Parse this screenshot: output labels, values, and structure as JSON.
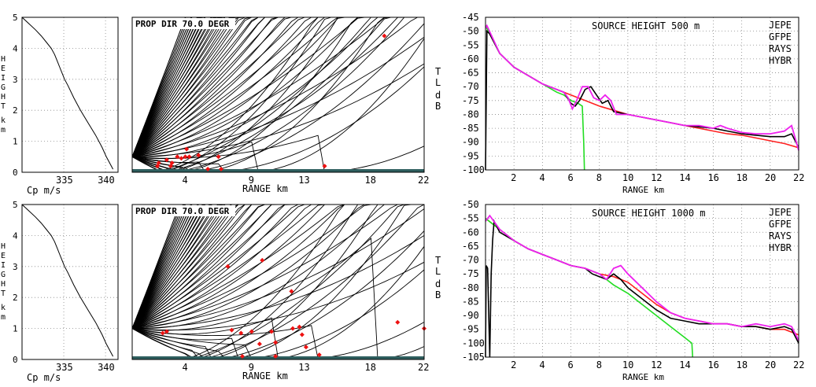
{
  "colors": {
    "jepe": "#000000",
    "gfpe": "#ff2020",
    "rays": "#22dd22",
    "hybr": "#ee22ee",
    "ray": "#000000",
    "ground": "#2f5f5f",
    "marker": "#ee1111",
    "grid": "#888888"
  },
  "tl_side_labels": [
    "T",
    "L",
    "d",
    "B"
  ],
  "chart_data": [
    {
      "type": "line",
      "panel": "profile-top",
      "xlabel": "Cp m/s",
      "ylabel": "HEIGHT km",
      "xlim": [
        330,
        341.5
      ],
      "ylim": [
        0,
        5
      ],
      "xticks": [
        335,
        340
      ],
      "yticks": [
        0,
        1,
        2,
        3,
        4,
        5
      ],
      "grid": true,
      "x": [
        330,
        330.8,
        331.6,
        332.3,
        332.9,
        333.5,
        333.9,
        334.2,
        334.5,
        334.8,
        335.1,
        335.5,
        336.2,
        337.0,
        337.9,
        338.8,
        339.6,
        340.1,
        340.5,
        340.9
      ],
      "y": [
        5.0,
        4.8,
        4.6,
        4.4,
        4.2,
        4.0,
        3.8,
        3.6,
        3.4,
        3.2,
        3.0,
        2.8,
        2.4,
        2.0,
        1.6,
        1.2,
        0.8,
        0.5,
        0.3,
        0.1
      ]
    },
    {
      "type": "ray",
      "panel": "rays-top",
      "title": "PROP DIR 70.0 DEGR",
      "xlabel": "RANGE km",
      "xlim": [
        0,
        22
      ],
      "ylim": [
        0,
        5
      ],
      "xticks": [
        4,
        9,
        13,
        18,
        22
      ],
      "source_height_km": 0.5,
      "markers": [
        {
          "x": 1.9,
          "y": 0.2
        },
        {
          "x": 2.0,
          "y": 0.3
        },
        {
          "x": 2.6,
          "y": 0.4
        },
        {
          "x": 2.9,
          "y": 0.2
        },
        {
          "x": 3.0,
          "y": 0.3
        },
        {
          "x": 3.4,
          "y": 0.5
        },
        {
          "x": 3.7,
          "y": 0.45
        },
        {
          "x": 4.0,
          "y": 0.5
        },
        {
          "x": 4.1,
          "y": 0.75
        },
        {
          "x": 4.3,
          "y": 0.5
        },
        {
          "x": 5.0,
          "y": 0.55
        },
        {
          "x": 5.7,
          "y": 0.1
        },
        {
          "x": 6.5,
          "y": 0.5
        },
        {
          "x": 6.7,
          "y": 0.1
        },
        {
          "x": 14.5,
          "y": 0.2
        },
        {
          "x": 19.0,
          "y": 4.4
        }
      ]
    },
    {
      "type": "line",
      "panel": "tl-top",
      "title": "SOURCE HEIGHT 500 m",
      "xlabel": "RANGE km",
      "ylabel": "TL dB",
      "xlim": [
        0,
        22
      ],
      "ylim": [
        -100,
        -45
      ],
      "xticks": [
        2,
        4,
        6,
        8,
        10,
        12,
        14,
        16,
        18,
        20,
        22
      ],
      "yticks": [
        -45,
        -50,
        -55,
        -60,
        -65,
        -70,
        -75,
        -80,
        -85,
        -90,
        -95,
        -100
      ],
      "grid": true,
      "legend": [
        "JEPE",
        "GFPE",
        "RAYS",
        "HYBR"
      ],
      "series": [
        {
          "name": "JEPE",
          "x": [
            0,
            0.1,
            0.3,
            1,
            2,
            3,
            4,
            5,
            5.5,
            6,
            6.3,
            6.6,
            7,
            7.4,
            7.8,
            8.2,
            8.6,
            9,
            10,
            11,
            12,
            13,
            14,
            15,
            16,
            17,
            18,
            19,
            20,
            21,
            21.5,
            22
          ],
          "y": [
            -100,
            -50,
            -51,
            -58,
            -63,
            -66,
            -69,
            -71,
            -72,
            -76,
            -77,
            -75,
            -71,
            -70,
            -73,
            -76,
            -75,
            -79,
            -80,
            -81,
            -82,
            -83,
            -84,
            -84.5,
            -85,
            -86,
            -87,
            -87.5,
            -88,
            -88,
            -87,
            -92
          ]
        },
        {
          "name": "GFPE",
          "x": [
            0,
            1,
            2,
            3,
            4,
            5,
            6,
            7,
            8,
            9,
            10,
            11,
            12,
            13,
            14,
            15,
            16,
            17,
            18,
            19,
            20,
            21,
            22
          ],
          "y": [
            -48,
            -58,
            -63,
            -66,
            -69,
            -71,
            -73,
            -75,
            -77,
            -78.5,
            -80,
            -81,
            -82,
            -83,
            -84,
            -85,
            -86,
            -87,
            -87.5,
            -88.5,
            -89.5,
            -90.5,
            -92
          ]
        },
        {
          "name": "RAYS",
          "x": [
            0,
            1,
            2,
            3,
            4,
            5,
            5.5,
            6,
            6.5,
            6.8,
            6.9,
            6.95
          ],
          "y": [
            -48,
            -58,
            -63,
            -66,
            -69,
            -72,
            -73,
            -75,
            -76,
            -77,
            -90,
            -100
          ]
        },
        {
          "name": "HYBR",
          "x": [
            0,
            0.1,
            1,
            2,
            3,
            4,
            5,
            5.5,
            5.8,
            6.1,
            6.4,
            6.8,
            7.2,
            7.6,
            8,
            8.4,
            8.8,
            9.2,
            10,
            11,
            12,
            13,
            14,
            15,
            16,
            16.5,
            17,
            18,
            19,
            20,
            21,
            21.5,
            22
          ],
          "y": [
            -49,
            -48,
            -58,
            -63,
            -66,
            -69,
            -71,
            -72,
            -74,
            -78,
            -75,
            -70,
            -70,
            -74,
            -75,
            -73,
            -75,
            -80,
            -80,
            -81,
            -82,
            -83,
            -84,
            -84,
            -85,
            -84,
            -85,
            -86.5,
            -87,
            -87,
            -86,
            -84,
            -93
          ]
        }
      ]
    },
    {
      "type": "line",
      "panel": "profile-bottom",
      "xlabel": "Cp m/s",
      "ylabel": "HEIGHT km",
      "xlim": [
        330,
        341.5
      ],
      "ylim": [
        0,
        5
      ],
      "xticks": [
        335,
        340
      ],
      "yticks": [
        0,
        1,
        2,
        3,
        4,
        5
      ],
      "grid": true,
      "x": [
        330,
        330.8,
        331.6,
        332.3,
        332.9,
        333.5,
        333.9,
        334.2,
        334.5,
        334.8,
        335.1,
        335.5,
        336.2,
        337.0,
        337.9,
        338.8,
        339.6,
        340.1,
        340.5,
        340.9
      ],
      "y": [
        5.0,
        4.8,
        4.6,
        4.4,
        4.2,
        4.0,
        3.8,
        3.6,
        3.4,
        3.2,
        3.0,
        2.8,
        2.4,
        2.0,
        1.6,
        1.2,
        0.8,
        0.5,
        0.3,
        0.1
      ]
    },
    {
      "type": "ray",
      "panel": "rays-bottom",
      "title": "PROP DIR 70.0 DEGR",
      "xlabel": "RANGE km",
      "xlim": [
        0,
        22
      ],
      "ylim": [
        0,
        5
      ],
      "xticks": [
        4,
        9,
        13,
        18,
        22
      ],
      "source_height_km": 1.0,
      "markers": [
        {
          "x": 2.3,
          "y": 0.85
        },
        {
          "x": 2.6,
          "y": 0.9
        },
        {
          "x": 7.2,
          "y": 3.0
        },
        {
          "x": 7.5,
          "y": 0.95
        },
        {
          "x": 8.2,
          "y": 0.85
        },
        {
          "x": 9.0,
          "y": 0.9
        },
        {
          "x": 9.6,
          "y": 0.5
        },
        {
          "x": 9.8,
          "y": 3.2
        },
        {
          "x": 10.5,
          "y": 0.9
        },
        {
          "x": 10.8,
          "y": 0.55
        },
        {
          "x": 12.0,
          "y": 2.2
        },
        {
          "x": 12.1,
          "y": 1.0
        },
        {
          "x": 12.6,
          "y": 1.05
        },
        {
          "x": 12.8,
          "y": 0.8
        },
        {
          "x": 13.1,
          "y": 0.4
        },
        {
          "x": 14.1,
          "y": 0.15
        },
        {
          "x": 10.8,
          "y": 0.1
        },
        {
          "x": 8.3,
          "y": 0.1
        },
        {
          "x": 20.0,
          "y": 1.2
        },
        {
          "x": 22.0,
          "y": 1.0
        }
      ]
    },
    {
      "type": "line",
      "panel": "tl-bottom",
      "title": "SOURCE HEIGHT 1000 m",
      "xlabel": "RANGE km",
      "ylabel": "TL dB",
      "xlim": [
        0,
        22
      ],
      "ylim": [
        -105,
        -50
      ],
      "xticks": [
        2,
        4,
        6,
        8,
        10,
        12,
        14,
        16,
        18,
        20,
        22
      ],
      "yticks": [
        -50,
        -55,
        -60,
        -65,
        -70,
        -75,
        -80,
        -85,
        -90,
        -95,
        -100,
        -105
      ],
      "grid": true,
      "legend": [
        "JEPE",
        "GFPE",
        "RAYS",
        "HYBR"
      ],
      "series": [
        {
          "name": "JEPE",
          "x": [
            0,
            0.05,
            0.15,
            0.3,
            0.4,
            0.5,
            0.6,
            0.8,
            1,
            2,
            3,
            4,
            5,
            6,
            7,
            7.5,
            8,
            8.5,
            9,
            9.5,
            10,
            11,
            12,
            13,
            14,
            15,
            16,
            17,
            18,
            19,
            20,
            21,
            21.5,
            22
          ],
          "y": [
            -105,
            -72,
            -73,
            -105,
            -75,
            -63,
            -56,
            -58,
            -60,
            -63,
            -66,
            -68,
            -70,
            -72,
            -73,
            -75,
            -76,
            -77,
            -75,
            -77,
            -80,
            -84,
            -88,
            -91,
            -92,
            -93,
            -93,
            -93,
            -94,
            -94,
            -95,
            -94,
            -95,
            -100
          ]
        },
        {
          "name": "GFPE",
          "x": [
            0,
            1,
            2,
            3,
            4,
            5,
            6,
            7,
            8,
            9,
            10,
            11,
            12,
            13,
            14,
            15,
            16,
            17,
            18,
            19,
            20,
            21,
            22
          ],
          "y": [
            -55,
            -59,
            -63,
            -66,
            -68,
            -70,
            -72,
            -73,
            -75,
            -76,
            -78,
            -82,
            -86,
            -89,
            -91,
            -92,
            -93,
            -93,
            -94,
            -94,
            -95,
            -95,
            -97
          ]
        },
        {
          "name": "RAYS",
          "x": [
            0,
            1,
            2,
            3,
            4,
            5,
            6,
            7,
            8,
            9,
            10,
            11,
            12,
            13,
            14,
            14.5,
            14.55
          ],
          "y": [
            -55,
            -59,
            -63,
            -66,
            -68,
            -70,
            -72,
            -73,
            -75,
            -79,
            -82,
            -86,
            -90,
            -94,
            -98,
            -100,
            -105
          ]
        },
        {
          "name": "HYBR",
          "x": [
            0,
            0.3,
            1,
            2,
            3,
            4,
            5,
            6,
            7,
            8,
            8.5,
            9,
            9.5,
            10,
            11,
            12,
            13,
            14,
            15,
            16,
            17,
            18,
            19,
            20,
            21,
            21.5,
            22
          ],
          "y": [
            -56,
            -54,
            -59,
            -63,
            -66,
            -68,
            -70,
            -72,
            -73,
            -75,
            -77,
            -73,
            -72,
            -75,
            -80,
            -85,
            -89,
            -91,
            -92,
            -93,
            -93,
            -94,
            -93,
            -94,
            -93,
            -94,
            -99
          ]
        }
      ]
    }
  ]
}
